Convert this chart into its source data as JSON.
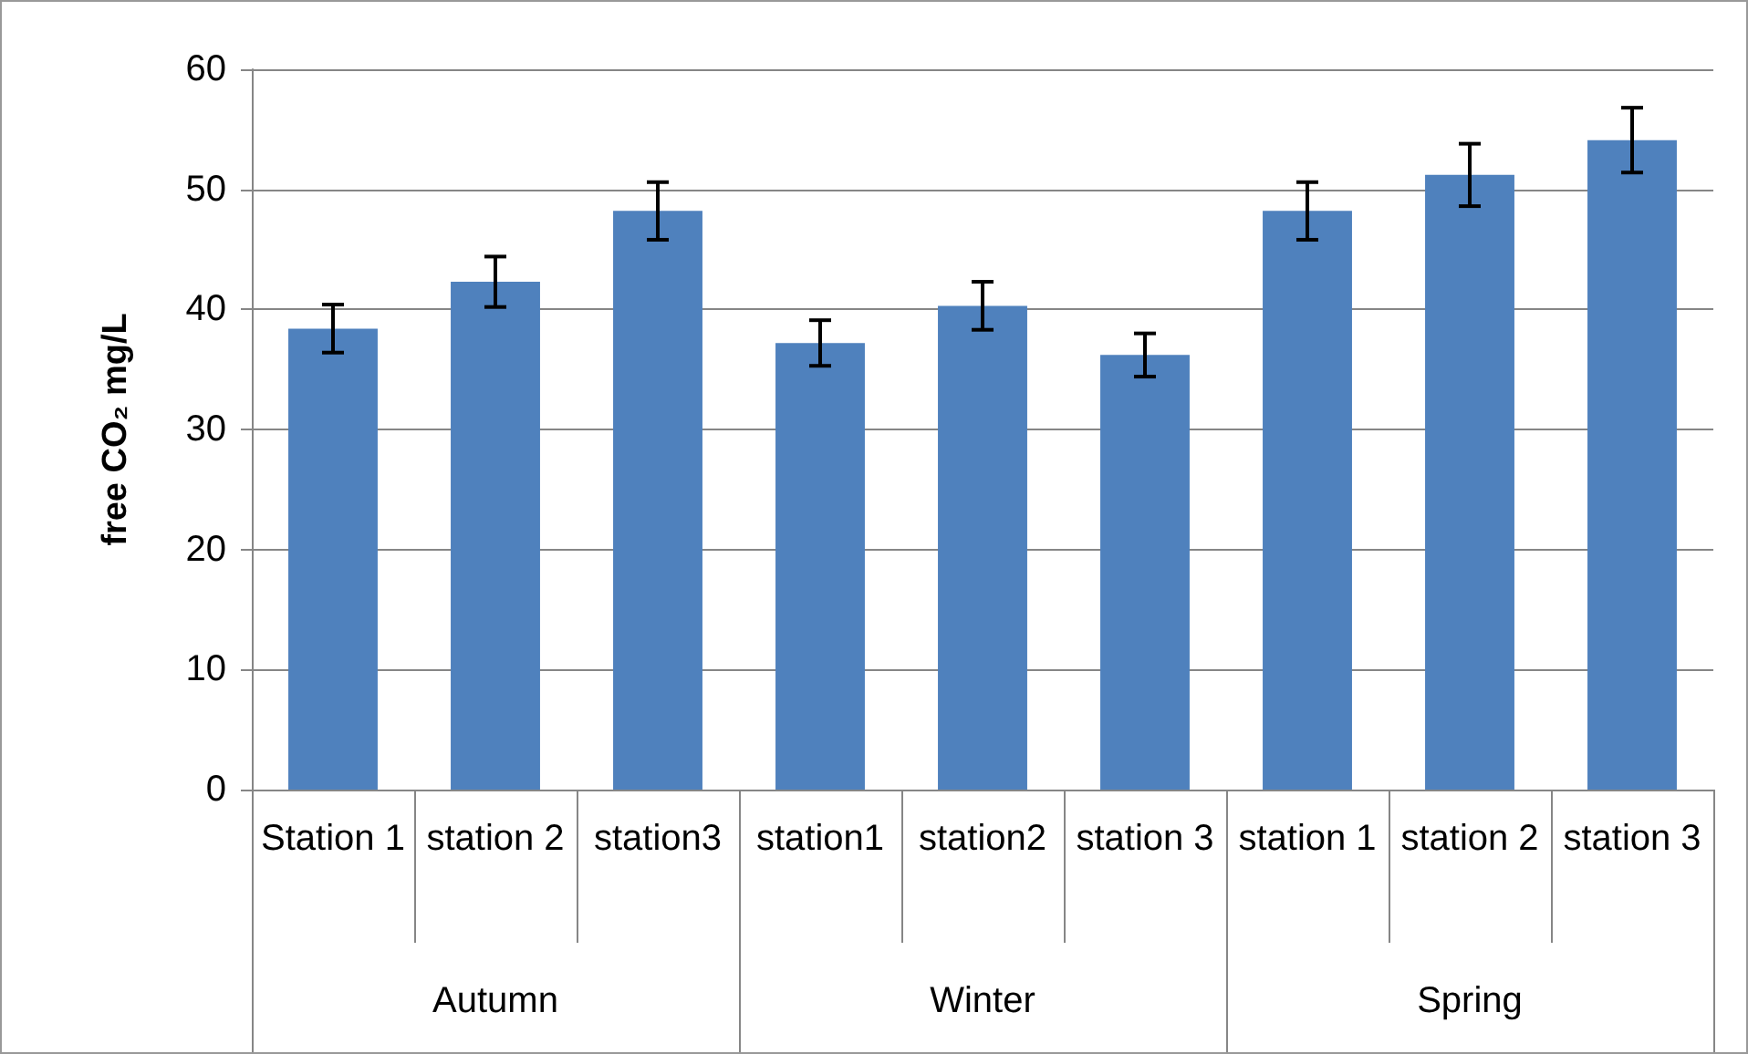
{
  "chart_data": {
    "type": "bar",
    "ylabel": "free CO₂ mg/L",
    "categories": [
      "Station 1",
      "station 2",
      "station3",
      "station1",
      "station2",
      "station 3",
      "station 1",
      "station 2",
      "station 3"
    ],
    "values": [
      38.4,
      42.3,
      48.2,
      37.2,
      40.3,
      36.2,
      48.2,
      51.2,
      54.1
    ],
    "errors": [
      2.0,
      2.1,
      2.4,
      1.9,
      2.0,
      1.8,
      2.4,
      2.6,
      2.7
    ],
    "color": "#4f81bd",
    "ylim": [
      0,
      60
    ],
    "yticks": [
      0,
      10,
      20,
      30,
      40,
      50,
      60
    ],
    "grid": "y",
    "annotations": [
      "Autumn",
      "Winter",
      "Spring"
    ]
  }
}
